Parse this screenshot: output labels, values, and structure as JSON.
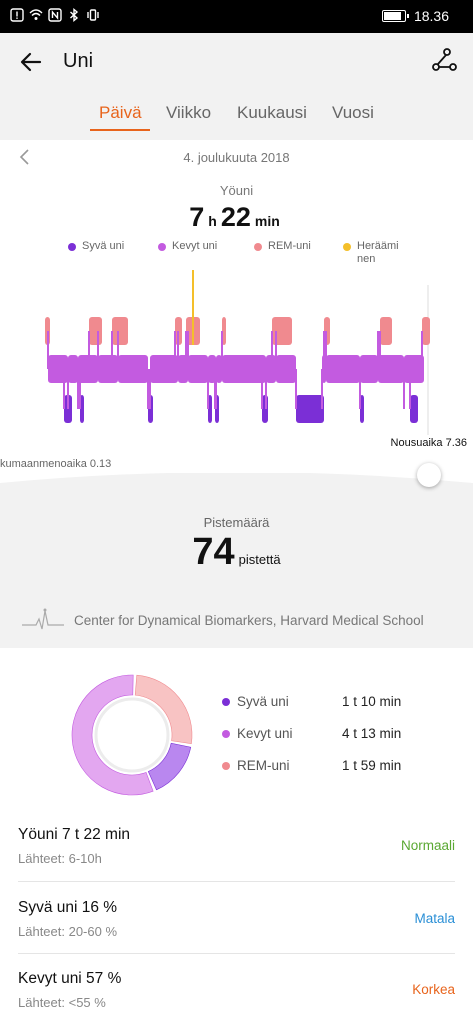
{
  "status_bar": {
    "time": "18.36",
    "battery_level": 0.85
  },
  "header": {
    "title": "Uni"
  },
  "tabs": [
    {
      "label": "Päivä",
      "active": true
    },
    {
      "label": "Viikko",
      "active": false
    },
    {
      "label": "Kuukausi",
      "active": false
    },
    {
      "label": "Vuosi",
      "active": false
    }
  ],
  "summary": {
    "date": "4. joulukuuta 2018",
    "sleep_label": "Yöuni",
    "hours": "7",
    "hours_unit": "h",
    "minutes": "22",
    "minutes_unit": "min"
  },
  "legend": [
    {
      "label": "Syvä uni",
      "color": "#7b2fd6"
    },
    {
      "label": "Kevyt uni",
      "color": "#c35be0"
    },
    {
      "label": "REM-uni",
      "color": "#f08a8f"
    },
    {
      "label": "Heräämi\nnen",
      "color": "#f4bf2a"
    }
  ],
  "chart_labels": {
    "rise": "Nousuaika 7.36",
    "bedtime": "kumaanmenoaika 0.13"
  },
  "score": {
    "label": "Pistemäärä",
    "value": "74",
    "unit": "pistettä"
  },
  "credit": "Center for Dynamical Biomarkers, Harvard Medical School",
  "breakdown": [
    {
      "label": "Syvä uni",
      "value": "1 t 10 min",
      "color": "#7b2fd6"
    },
    {
      "label": "Kevyt uni",
      "value": "4 t 13 min",
      "color": "#c35be0"
    },
    {
      "label": "REM-uni",
      "value": "1 t 59 min",
      "color": "#f08a8f"
    }
  ],
  "rows": [
    {
      "main": "Yöuni  7 t 22 min",
      "ref": "Lähteet: 6-10h",
      "status": "Normaali",
      "status_color": "#5aa832"
    },
    {
      "main": "Syvä uni  16 %",
      "ref": "Lähteet: 20-60 %",
      "status": "Matala",
      "status_color": "#2a8fd6"
    },
    {
      "main": "Kevyt uni  57 %",
      "ref": "Lähteet: <55 %",
      "status": "Korkea",
      "status_color": "#e8641c"
    }
  ],
  "chart_data": {
    "type": "bar",
    "title": "Yöuni",
    "categories": [
      "Syvä uni",
      "Kevyt uni",
      "REM-uni"
    ],
    "values": [
      70,
      253,
      119
    ],
    "units": "min",
    "pie_fractions": [
      0.16,
      0.57,
      0.27
    ]
  }
}
